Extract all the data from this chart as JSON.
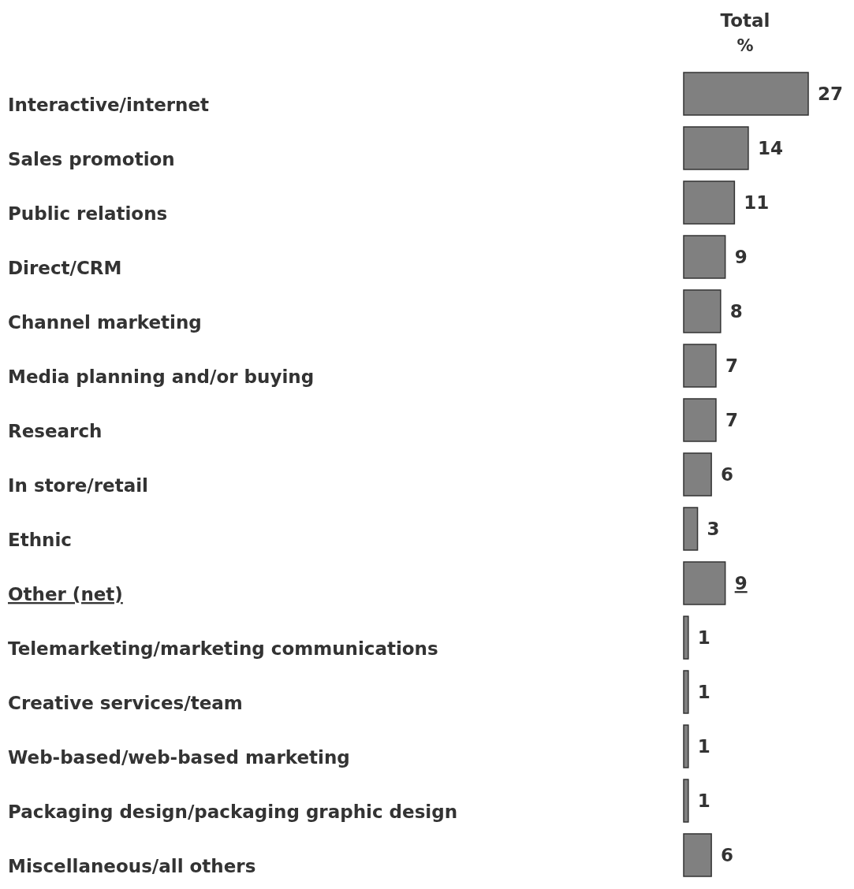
{
  "chart_data": {
    "type": "bar",
    "orientation": "horizontal",
    "title": "Total",
    "subtitle": "%",
    "categories": [
      "Interactive/internet",
      "Sales promotion",
      "Public relations",
      "Direct/CRM",
      "Channel marketing",
      "Media planning and/or buying",
      "Research",
      "In store/retail",
      "Ethnic",
      "Other (net)",
      "Telemarketing/marketing communications",
      "Creative services/team",
      "Web-based/web-based marketing",
      "Packaging design/packaging graphic design",
      "Miscellaneous/all others"
    ],
    "values": [
      27,
      14,
      11,
      9,
      8,
      7,
      7,
      6,
      3,
      9,
      1,
      1,
      1,
      1,
      6
    ],
    "color": "#808080",
    "data_labels": true
  }
}
